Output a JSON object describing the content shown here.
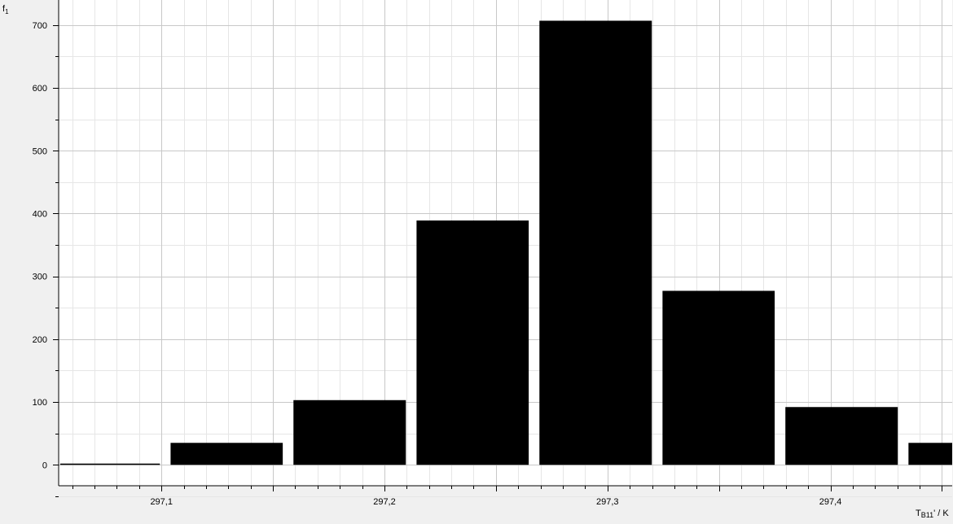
{
  "chart_data": {
    "type": "bar",
    "title": "",
    "ylabel": "f1",
    "xlabel": "TB11' / K",
    "xlim": [
      297.0539,
      297.4546
    ],
    "ylim": [
      -33.3,
      740
    ],
    "y_ticks": [
      0,
      100,
      200,
      300,
      400,
      500,
      600,
      700
    ],
    "y_tick_labels": [
      "0",
      "100",
      "200",
      "300",
      "400",
      "500",
      "600",
      "700"
    ],
    "x_ticks": [
      297.1,
      297.2,
      297.3,
      297.4
    ],
    "x_tick_labels": [
      "297,1",
      "297,2",
      "297,3",
      "297,4"
    ],
    "grid": true,
    "bins": [
      {
        "x0": 297.0546,
        "x1": 297.0993,
        "value": 2
      },
      {
        "x0": 297.1041,
        "x1": 297.1544,
        "value": 35
      },
      {
        "x0": 297.1592,
        "x1": 297.2096,
        "value": 103
      },
      {
        "x0": 297.2144,
        "x1": 297.2647,
        "value": 389
      },
      {
        "x0": 297.2695,
        "x1": 297.3199,
        "value": 707
      },
      {
        "x0": 297.3247,
        "x1": 297.375,
        "value": 277
      },
      {
        "x0": 297.3798,
        "x1": 297.4302,
        "value": 92
      },
      {
        "x0": 297.435,
        "x1": 297.4546,
        "value": 35
      }
    ],
    "colors": {
      "bar": "#000000",
      "plot_bg": "#ffffff",
      "page_bg": "#f0f0f0",
      "grid_major": "#c8c8c8",
      "grid_minor": "#e6e6e6",
      "axis": "#000000"
    }
  }
}
